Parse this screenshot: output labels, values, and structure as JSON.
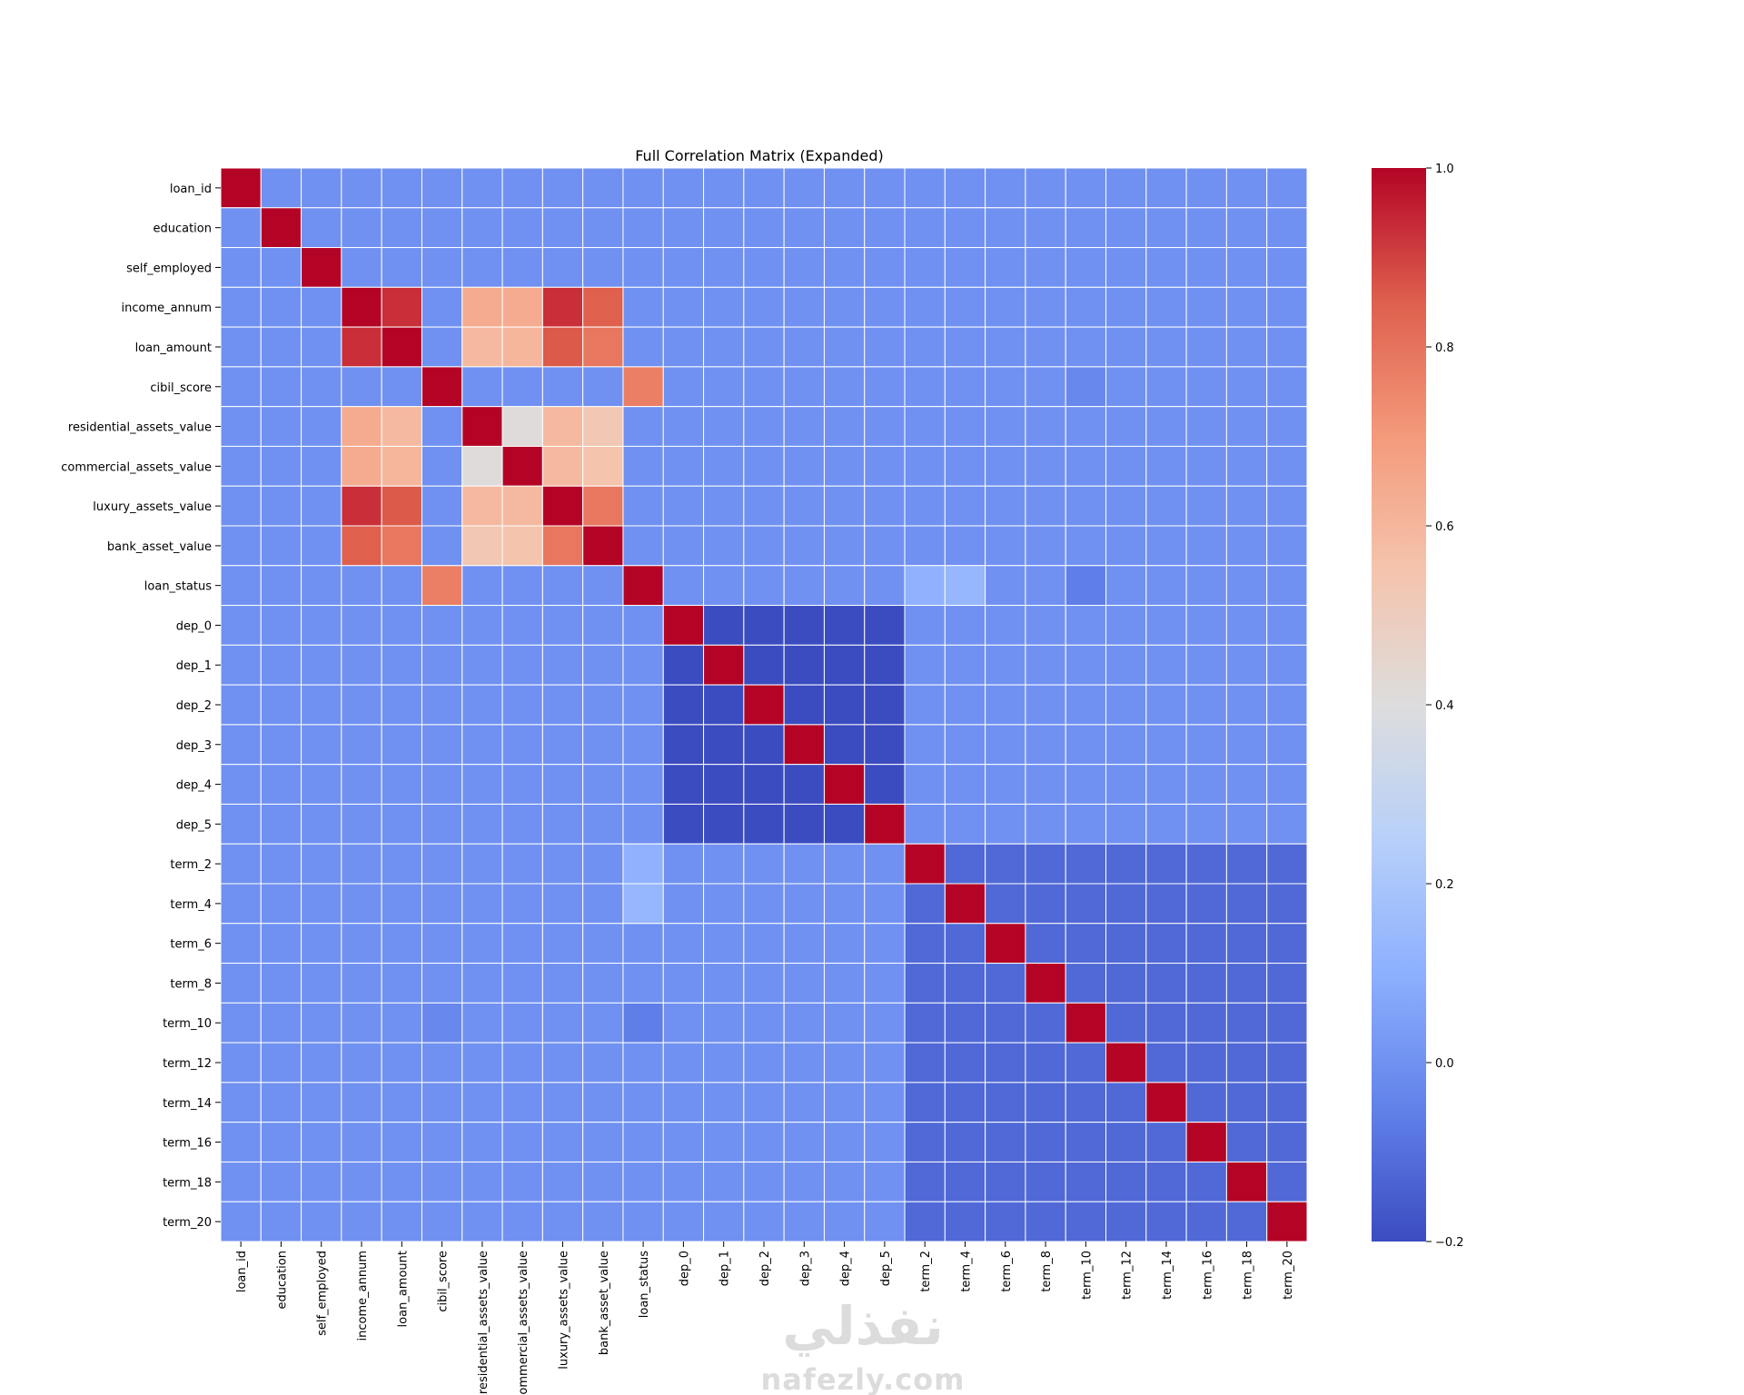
{
  "chart_data": {
    "type": "heatmap",
    "title": "Full Correlation Matrix (Expanded)",
    "colormap": "coolwarm",
    "vmin": -0.2,
    "vmax": 1.0,
    "grid_lines": true,
    "colorbar_ticks": [
      "−0.2",
      "0.0",
      "0.2",
      "0.4",
      "0.6",
      "0.8",
      "1.0"
    ],
    "colorbar_tick_values": [
      -0.2,
      0.0,
      0.2,
      0.4,
      0.6,
      0.8,
      1.0
    ],
    "labels": [
      "loan_id",
      "education",
      "self_employed",
      "income_annum",
      "loan_amount",
      "cibil_score",
      "residential_assets_value",
      "commercial_assets_value",
      "luxury_assets_value",
      "bank_asset_value",
      "loan_status",
      "dep_0",
      "dep_1",
      "dep_2",
      "dep_3",
      "dep_4",
      "dep_5",
      "term_2",
      "term_4",
      "term_6",
      "term_8",
      "term_10",
      "term_12",
      "term_14",
      "term_16",
      "term_18",
      "term_20"
    ],
    "default_value": 0.0,
    "strong_pairs": [
      {
        "a": "income_annum",
        "b": "loan_amount",
        "value": 0.93
      },
      {
        "a": "income_annum",
        "b": "luxury_assets_value",
        "value": 0.93
      },
      {
        "a": "income_annum",
        "b": "bank_asset_value",
        "value": 0.85
      },
      {
        "a": "income_annum",
        "b": "residential_assets_value",
        "value": 0.64
      },
      {
        "a": "income_annum",
        "b": "commercial_assets_value",
        "value": 0.64
      },
      {
        "a": "loan_amount",
        "b": "luxury_assets_value",
        "value": 0.86
      },
      {
        "a": "loan_amount",
        "b": "bank_asset_value",
        "value": 0.79
      },
      {
        "a": "loan_amount",
        "b": "residential_assets_value",
        "value": 0.59
      },
      {
        "a": "loan_amount",
        "b": "commercial_assets_value",
        "value": 0.6
      },
      {
        "a": "cibil_score",
        "b": "loan_status",
        "value": 0.77
      },
      {
        "a": "residential_assets_value",
        "b": "commercial_assets_value",
        "value": 0.41
      },
      {
        "a": "residential_assets_value",
        "b": "luxury_assets_value",
        "value": 0.59
      },
      {
        "a": "residential_assets_value",
        "b": "bank_asset_value",
        "value": 0.53
      },
      {
        "a": "commercial_assets_value",
        "b": "luxury_assets_value",
        "value": 0.59
      },
      {
        "a": "commercial_assets_value",
        "b": "bank_asset_value",
        "value": 0.55
      },
      {
        "a": "luxury_assets_value",
        "b": "bank_asset_value",
        "value": 0.79
      },
      {
        "a": "loan_status",
        "b": "term_2",
        "value": 0.11
      },
      {
        "a": "loan_status",
        "b": "term_4",
        "value": 0.13
      },
      {
        "a": "loan_status",
        "b": "term_10",
        "value": -0.06
      },
      {
        "a": "cibil_score",
        "b": "term_10",
        "value": -0.03
      }
    ],
    "dep_group": [
      "dep_0",
      "dep_1",
      "dep_2",
      "dep_3",
      "dep_4",
      "dep_5"
    ],
    "dep_group_value": -0.2,
    "term_group": [
      "term_2",
      "term_4",
      "term_6",
      "term_8",
      "term_10",
      "term_12",
      "term_14",
      "term_16",
      "term_18",
      "term_20"
    ],
    "term_group_value": -0.12
  },
  "watermark": {
    "arabic": "نفذلي",
    "latin": "nafezly.com"
  }
}
